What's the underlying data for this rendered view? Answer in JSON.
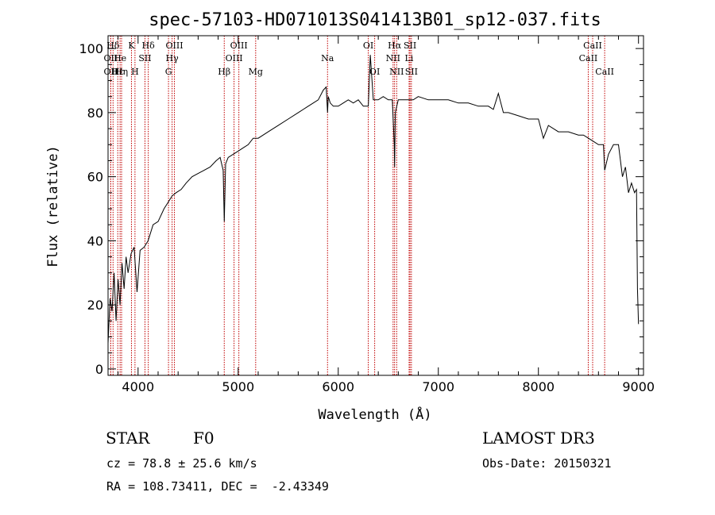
{
  "chart_data": {
    "type": "line",
    "title": "spec-57103-HD071013S041413B01_sp12-037.fits",
    "xlabel": "Wavelength (Å)",
    "ylabel": "Flux (relative)",
    "xlim": [
      3700,
      9050
    ],
    "ylim": [
      -2,
      104
    ],
    "xticks": [
      4000,
      5000,
      6000,
      7000,
      8000,
      9000
    ],
    "yticks": [
      0,
      20,
      40,
      60,
      80,
      100
    ],
    "grid": false,
    "series": [
      {
        "x": [
          3700,
          3720,
          3740,
          3760,
          3780,
          3800,
          3820,
          3840,
          3860,
          3880,
          3900,
          3930,
          3960,
          3990,
          4020,
          4060,
          4100,
          4150,
          4200,
          4260,
          4300,
          4340,
          4380,
          4430,
          4480,
          4540,
          4600,
          4660,
          4720,
          4780,
          4820,
          4850,
          4861,
          4875,
          4900,
          4950,
          5000,
          5050,
          5100,
          5150,
          5200,
          5300,
          5400,
          5500,
          5600,
          5700,
          5800,
          5850,
          5880,
          5893,
          5900,
          5920,
          5950,
          6000,
          6050,
          6100,
          6150,
          6200,
          6250,
          6300,
          6320,
          6350,
          6400,
          6450,
          6500,
          6540,
          6560,
          6563,
          6570,
          6600,
          6650,
          6700,
          6750,
          6800,
          6900,
          7000,
          7100,
          7200,
          7300,
          7400,
          7500,
          7550,
          7600,
          7650,
          7700,
          7800,
          7900,
          8000,
          8050,
          8100,
          8200,
          8300,
          8400,
          8450,
          8500,
          8550,
          8600,
          8650,
          8662,
          8700,
          8750,
          8800,
          8840,
          8870,
          8900,
          8930,
          8960,
          8980,
          8990,
          9000
        ],
        "y": [
          8,
          22,
          18,
          30,
          15,
          28,
          20,
          33,
          25,
          35,
          30,
          36,
          38,
          24,
          37,
          38,
          40,
          45,
          46,
          50,
          52,
          54,
          55,
          56,
          58,
          60,
          61,
          62,
          63,
          65,
          66,
          62,
          46,
          64,
          66,
          67,
          68,
          69,
          70,
          72,
          72,
          74,
          76,
          78,
          80,
          82,
          84,
          87,
          88,
          80,
          85,
          83,
          82,
          82,
          83,
          84,
          83,
          84,
          82,
          82,
          98,
          84,
          84,
          85,
          84,
          84,
          70,
          63,
          80,
          84,
          84,
          84,
          84,
          85,
          84,
          84,
          84,
          83,
          83,
          82,
          82,
          81,
          86,
          80,
          80,
          79,
          78,
          78,
          72,
          76,
          74,
          74,
          73,
          73,
          72,
          71,
          70,
          70,
          62,
          67,
          70,
          70,
          60,
          63,
          55,
          58,
          55,
          56,
          25,
          14
        ]
      }
    ],
    "lines": [
      {
        "label": "Hδ",
        "wave": 3750,
        "row": 1
      },
      {
        "label": "OII",
        "wave": 3727,
        "row": 2
      },
      {
        "label": "OII",
        "wave": 3727,
        "row": 3
      },
      {
        "label": "Hε",
        "wave": 3797,
        "row": 3
      },
      {
        "label": "He",
        "wave": 3820,
        "row": 2
      },
      {
        "label": "K",
        "wave": 3934,
        "row": 1
      },
      {
        "label": "Hη",
        "wave": 3835,
        "row": 3
      },
      {
        "label": "SII",
        "wave": 4069,
        "row": 2
      },
      {
        "label": "H",
        "wave": 3969,
        "row": 3
      },
      {
        "label": "Hδ",
        "wave": 4102,
        "row": 1
      },
      {
        "label": "OIII",
        "wave": 4363,
        "row": 1
      },
      {
        "label": "Hγ",
        "wave": 4340,
        "row": 2
      },
      {
        "label": "G",
        "wave": 4304,
        "row": 3
      },
      {
        "label": "Hβ",
        "wave": 4861,
        "row": 3
      },
      {
        "label": "OIII",
        "wave": 5007,
        "row": 1
      },
      {
        "label": "OIII",
        "wave": 4959,
        "row": 2
      },
      {
        "label": "Mg",
        "wave": 5175,
        "row": 3
      },
      {
        "label": "Na",
        "wave": 5893,
        "row": 2
      },
      {
        "label": "OI",
        "wave": 6300,
        "row": 1
      },
      {
        "label": "OI",
        "wave": 6364,
        "row": 3
      },
      {
        "label": "Hα",
        "wave": 6563,
        "row": 1
      },
      {
        "label": "NII",
        "wave": 6548,
        "row": 2
      },
      {
        "label": "NII",
        "wave": 6584,
        "row": 3
      },
      {
        "label": "SII",
        "wave": 6717,
        "row": 1
      },
      {
        "label": "Li",
        "wave": 6708,
        "row": 2
      },
      {
        "label": "SII",
        "wave": 6731,
        "row": 3
      },
      {
        "label": "CaII",
        "wave": 8542,
        "row": 1
      },
      {
        "label": "CaII",
        "wave": 8498,
        "row": 2
      },
      {
        "label": "CaII",
        "wave": 8662,
        "row": 3
      }
    ]
  },
  "info": {
    "class_label": "STAR",
    "subclass": "F0",
    "survey": "LAMOST DR3",
    "cz": "cz = 78.8 ± 25.6 km/s",
    "obs_date": "Obs-Date: 20150321",
    "radec": "RA = 108.73411, DEC =  -2.43349"
  },
  "colors": {
    "line_marker": "#c00000",
    "spectrum": "#000000",
    "axis": "#000000"
  }
}
